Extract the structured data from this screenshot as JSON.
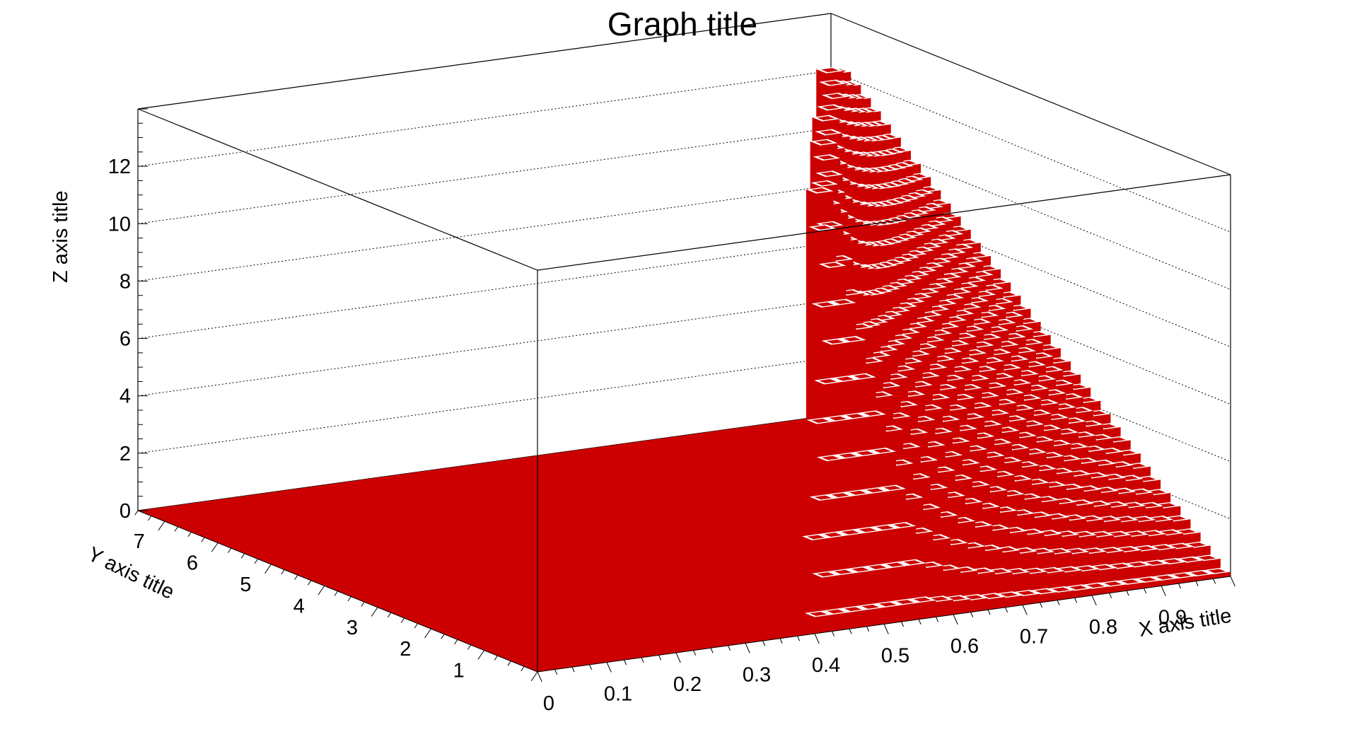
{
  "chart_data": {
    "type": "lego",
    "title": "Graph title",
    "xlabel": "X axis title",
    "ylabel": "Y axis title",
    "zlabel": "Z axis title",
    "xlim": [
      0,
      1
    ],
    "ylim": [
      0,
      7.5
    ],
    "zlim": [
      0,
      14
    ],
    "x_ticks": [
      "0",
      "0.1",
      "0.2",
      "0.3",
      "0.4",
      "0.5",
      "0.6",
      "0.7",
      "0.8",
      "0.9"
    ],
    "y_ticks": [
      "1",
      "2",
      "3",
      "4",
      "5",
      "6",
      "7"
    ],
    "z_ticks": [
      "0",
      "2",
      "4",
      "6",
      "8",
      "10",
      "12"
    ],
    "grid": "z-dotted",
    "colors": {
      "fill": "#cc0000",
      "frame": "#000000"
    },
    "surface": {
      "description_free_values": true,
      "x_start": 0.4,
      "x_end": 1.0,
      "peak_x": 0.57,
      "peak_z": 13.1,
      "y_at_x_start": 0.0,
      "y_at_x_end": 7.5,
      "base_z": 0
    }
  }
}
